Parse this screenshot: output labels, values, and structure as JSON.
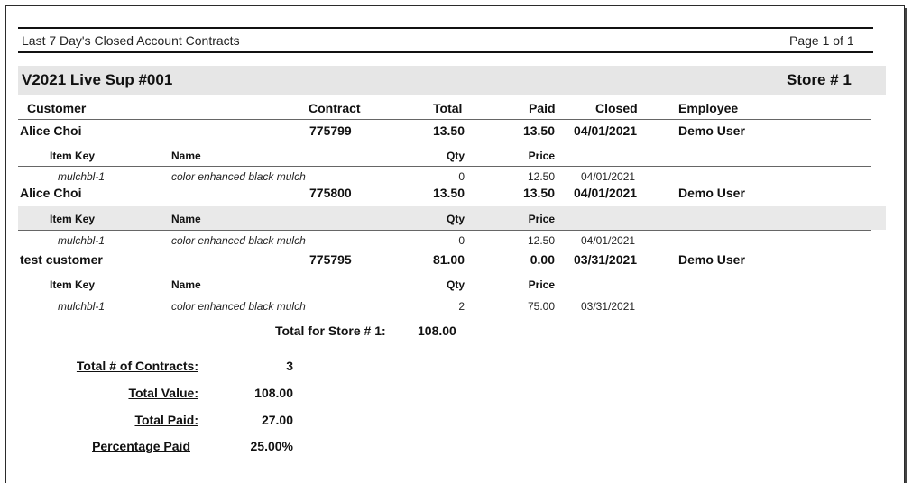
{
  "report": {
    "title": "Last 7 Day's Closed Account Contracts",
    "page_label": "Page 1 of 1"
  },
  "store": {
    "name": "V2021 Live Sup #001",
    "number_label": "Store # 1"
  },
  "columns": {
    "customer": "Customer",
    "contract": "Contract",
    "total": "Total",
    "paid": "Paid",
    "closed": "Closed",
    "employee": "Employee"
  },
  "item_columns": {
    "item_key": "Item Key",
    "name": "Name",
    "qty": "Qty",
    "price": "Price"
  },
  "contracts": [
    {
      "customer": "Alice Choi",
      "contract": "775799",
      "total": "13.50",
      "paid": "13.50",
      "closed": "04/01/2021",
      "employee": "Demo User",
      "item": {
        "key": "mulchbl-1",
        "name": "color enhanced black mulch",
        "qty": "0",
        "price": "12.50",
        "date": "04/01/2021"
      }
    },
    {
      "customer": "Alice Choi",
      "contract": "775800",
      "total": "13.50",
      "paid": "13.50",
      "closed": "04/01/2021",
      "employee": "Demo User",
      "item": {
        "key": "mulchbl-1",
        "name": "color enhanced black mulch",
        "qty": "0",
        "price": "12.50",
        "date": "04/01/2021"
      }
    },
    {
      "customer": "test customer",
      "contract": "775795",
      "total": "81.00",
      "paid": "0.00",
      "closed": "03/31/2021",
      "employee": "Demo User",
      "item": {
        "key": "mulchbl-1",
        "name": "color enhanced black mulch",
        "qty": "2",
        "price": "75.00",
        "date": "03/31/2021"
      }
    }
  ],
  "store_total": {
    "label": "Total for Store # 1:",
    "value": "108.00"
  },
  "summary": {
    "contracts_label": "Total # of Contracts:",
    "contracts_value": "3",
    "value_label": "Total Value:",
    "value_value": "108.00",
    "paid_label": "Total Paid:",
    "paid_value": "27.00",
    "pct_label": "Percentage Paid",
    "pct_value": "25.00%"
  }
}
